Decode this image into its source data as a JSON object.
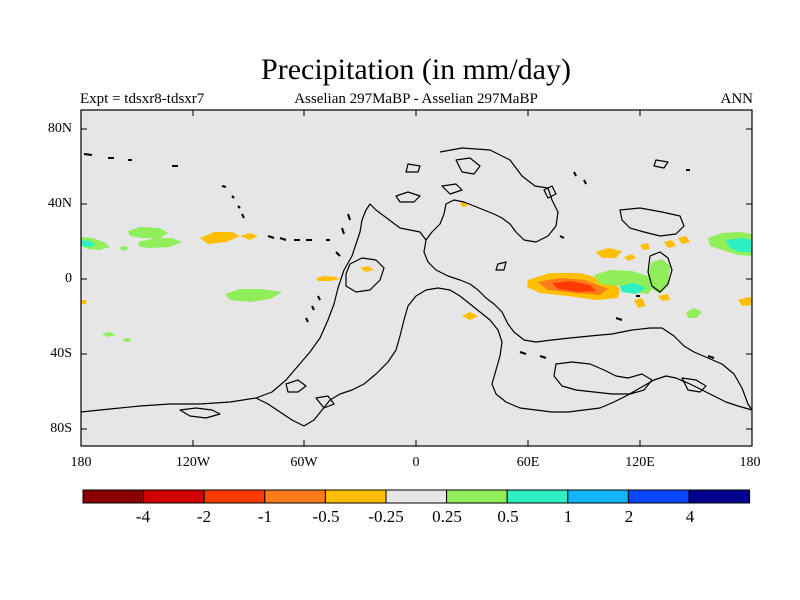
{
  "title": "Precipitation (in mm/day)",
  "subtitle_left": "Expt = tdsxr8-tdsxr7",
  "subtitle_center": "Asselian 297MaBP - Asselian 297MaBP",
  "subtitle_right": "ANN",
  "y_ticks": [
    "80N",
    "40N",
    "0",
    "40S",
    "80S"
  ],
  "x_ticks": [
    "180",
    "120W",
    "60W",
    "0",
    "60E",
    "120E",
    "180"
  ],
  "colorbar": {
    "colors": [
      "#8b0000",
      "#d10000",
      "#ff3a00",
      "#ff7a1a",
      "#ffbf00",
      "#e6e6e6",
      "#90ee5a",
      "#2cf0c4",
      "#14b4ff",
      "#0a46ff",
      "#00008c"
    ],
    "labels": [
      "-4",
      "-2",
      "-1",
      "-0.5",
      "-0.25",
      "0.25",
      "0.5",
      "1",
      "2",
      "4"
    ]
  },
  "colors": {
    "background": "#e6e6e6",
    "coast": "#000000",
    "orange": "#ffbf00",
    "orange_dark": "#ff7a1a",
    "red": "#ff3a00",
    "green": "#90ee5a",
    "cyan": "#2cf0c4"
  }
}
